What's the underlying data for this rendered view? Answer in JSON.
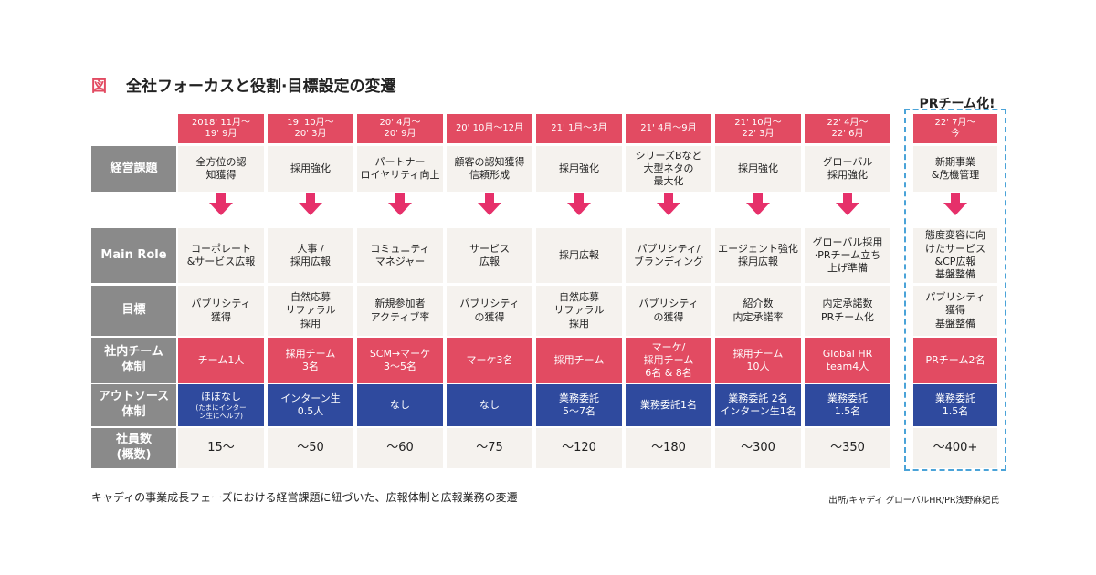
{
  "figure": {
    "label": "図",
    "title": "全社フォーカスと役割·目標設定の変遷",
    "pr_label": "PRチーム化!",
    "caption": "キャディの事業成長フェーズにおける経営課題に紐づいた、広報体制と広報業務の変遷",
    "source": "出所/キャディ グローバルHR/PR浅野麻妃氏"
  },
  "row_labels": {
    "issue": "経営課題",
    "role": "Main Role",
    "goal": "目標",
    "team": "社内チーム\n体制",
    "outsource": "アウトソース\n体制",
    "headcount": "社員数\n(概数)"
  },
  "columns": [
    {
      "period": "2018' 11月〜\n19' 9月",
      "issue": "全方位の認\n知獲得",
      "role": "コーポレート\n&サービス広報",
      "goal": "パブリシティ\n獲得",
      "team": "チーム1人",
      "outsource": "ほぼなし",
      "outsource_note": "(たまにインター\nン生にヘルプ)",
      "headcount": "15〜"
    },
    {
      "period": "19' 10月〜\n20' 3月",
      "issue": "採用強化",
      "role": "人事 /\n採用広報",
      "goal": "自然応募\nリファラル\n採用",
      "team": "採用チーム\n3名",
      "outsource": "インターン生\n0.5人",
      "outsource_note": "",
      "headcount": "〜50"
    },
    {
      "period": "20' 4月〜\n20' 9月",
      "issue": "パートナー\nロイヤリティ向上",
      "role": "コミュニティ\nマネジャー",
      "goal": "新規参加者\nアクティブ率",
      "team": "SCM→マーケ\n3〜5名",
      "outsource": "なし",
      "outsource_note": "",
      "headcount": "〜60"
    },
    {
      "period": "20' 10月〜12月",
      "issue": "顧客の認知獲得\n信頼形成",
      "role": "サービス\n広報",
      "goal": "パブリシティ\nの獲得",
      "team": "マーケ3名",
      "outsource": "なし",
      "outsource_note": "",
      "headcount": "〜75"
    },
    {
      "period": "21' 1月〜3月",
      "issue": "採用強化",
      "role": "採用広報",
      "goal": "自然応募\nリファラル\n採用",
      "team": "採用チーム",
      "outsource": "業務委託\n5〜7名",
      "outsource_note": "",
      "headcount": "〜120"
    },
    {
      "period": "21' 4月〜9月",
      "issue": "シリーズBなど\n大型ネタの\n最大化",
      "role": "パブリシティ/\nブランディング",
      "goal": "パブリシティ\nの獲得",
      "team": "マーケ/\n採用チーム\n6名 & 8名",
      "outsource": "業務委託1名",
      "outsource_note": "",
      "headcount": "〜180"
    },
    {
      "period": "21' 10月〜\n22' 3月",
      "issue": "採用強化",
      "role": "エージェント強化\n採用広報",
      "goal": "紹介数\n内定承諾率",
      "team": "採用チーム\n10人",
      "outsource": "業務委託 2名\nインターン生1名",
      "outsource_note": "",
      "headcount": "〜300"
    },
    {
      "period": "22' 4月〜\n22' 6月",
      "issue": "グローバル\n採用強化",
      "role": "グローバル採用\n·PRチーム立ち\n上げ準備",
      "goal": "内定承諾数\nPRチーム化",
      "team": "Global HR\nteam4人",
      "outsource": "業務委託\n1.5名",
      "outsource_note": "",
      "headcount": "〜350"
    },
    {
      "period": "22' 7月〜\n今",
      "issue": "新期事業\n&危機管理",
      "role": "態度変容に向\nけたサービス\n&CP広報\n基盤整備",
      "goal": "パブリシティ\n獲得\n基盤整備",
      "team": "PRチーム2名",
      "outsource": "業務委託\n1.5名",
      "outsource_note": "",
      "headcount": "〜400+"
    }
  ],
  "colors": {
    "accent_pink": "#e24b62",
    "outsource_blue": "#2f4a9e",
    "label_gray": "#8a8a8a",
    "cell_beige": "#f5f2ee",
    "arrow": "#e6306a",
    "dash_blue": "#4aa3d8"
  },
  "icons": {
    "arrow": "down-arrow-icon"
  }
}
